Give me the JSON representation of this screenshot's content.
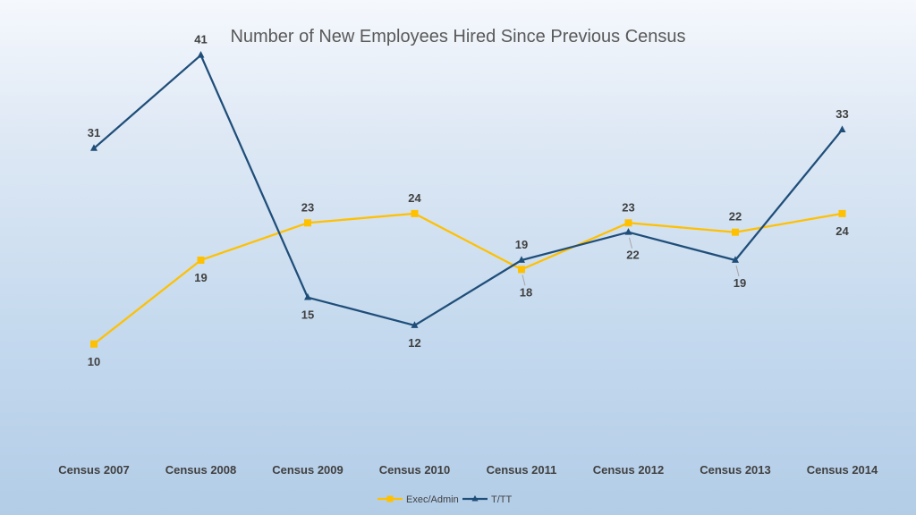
{
  "chart_data": {
    "type": "line",
    "title": "Number of New Employees Hired Since Previous Census",
    "categories": [
      "Census 2007",
      "Census 2008",
      "Census 2009",
      "Census 2010",
      "Census 2011",
      "Census 2012",
      "Census 2013",
      "Census 2014"
    ],
    "series": [
      {
        "name": "Exec/Admin",
        "color": "#FFC000",
        "marker": "square",
        "values": [
          10,
          19,
          23,
          24,
          18,
          23,
          22,
          24
        ]
      },
      {
        "name": "T/TT",
        "color": "#1F4E79",
        "marker": "triangle",
        "values": [
          31,
          41,
          15,
          12,
          19,
          22,
          19,
          33
        ]
      }
    ],
    "xlabel": "",
    "ylabel": "",
    "ylim": [
      0,
      45
    ],
    "grid": false,
    "legend": "bottom-center",
    "data_labels": true,
    "background": "light-blue-gradient"
  }
}
